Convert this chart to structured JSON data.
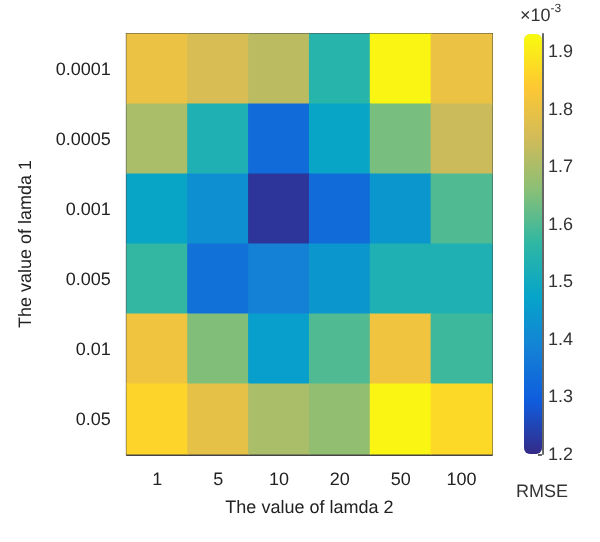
{
  "chart_data": {
    "type": "heatmap",
    "xlabel": "The value of lamda 2",
    "ylabel": "The value of lamda 1",
    "clabel": "RMSE",
    "categories": [
      "1",
      "5",
      "10",
      "20",
      "50",
      "100"
    ],
    "y_categories": [
      "0.0001",
      "0.0005",
      "0.001",
      "0.005",
      "0.01",
      "0.05"
    ],
    "cells": [
      [
        1.8,
        1.76,
        1.72,
        1.55,
        1.92,
        1.8
      ],
      [
        1.7,
        1.53,
        1.33,
        1.48,
        1.64,
        1.74
      ],
      [
        1.48,
        1.42,
        1.22,
        1.33,
        1.44,
        1.6
      ],
      [
        1.57,
        1.34,
        1.38,
        1.44,
        1.53,
        1.53
      ],
      [
        1.81,
        1.65,
        1.46,
        1.6,
        1.81,
        1.58
      ],
      [
        1.86,
        1.79,
        1.7,
        1.67,
        1.92,
        1.87
      ]
    ],
    "clim": [
      1.2,
      1.93
    ],
    "cticks": [
      1.2,
      1.3,
      1.4,
      1.5,
      1.6,
      1.7,
      1.8,
      1.9
    ],
    "annotations": [
      "×10$^{-3}$"
    ]
  }
}
